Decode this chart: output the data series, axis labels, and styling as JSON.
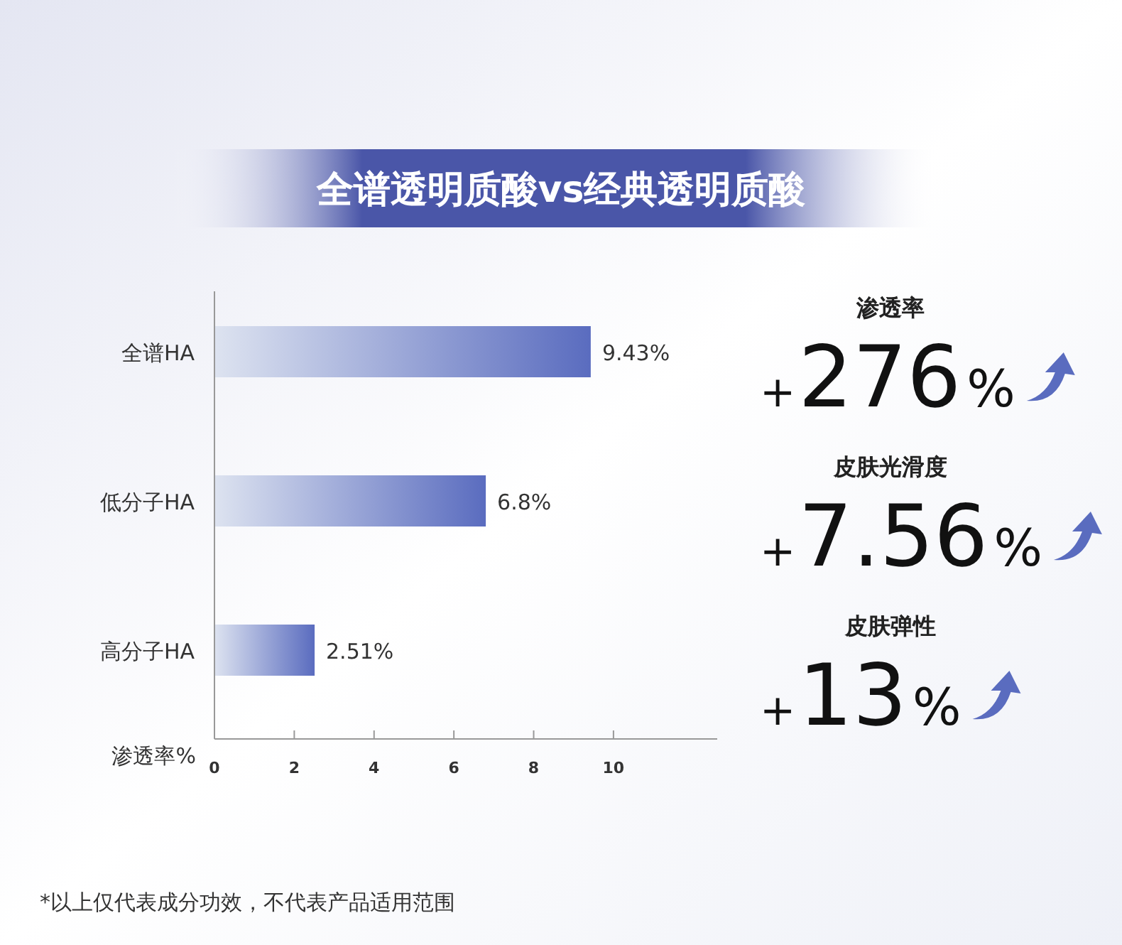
{
  "chart_data": [
    {
      "type": "bar",
      "orientation": "horizontal",
      "title": "全谱透明质酸vs经典透明质酸",
      "xlabel": "渗透率%",
      "categories": [
        "全谱HA",
        "低分子HA",
        "高分子HA"
      ],
      "values": [
        9.43,
        6.8,
        2.51
      ],
      "value_labels": [
        "9.43%",
        "6.8%",
        "2.51%"
      ],
      "color": "#5a6cbf",
      "xlim": [
        0,
        12.6
      ],
      "xticks": [
        0,
        2,
        4,
        6,
        8,
        10
      ],
      "grid": false,
      "annotations": [
        "*以上仅代表成分功效，不代表产品适用范围"
      ]
    },
    {
      "type": "other",
      "annotations": [
        "渗透率",
        "+276%",
        "皮肤光滑度",
        "+7.56%",
        "皮肤弹性",
        "+13%"
      ]
    }
  ]
}
